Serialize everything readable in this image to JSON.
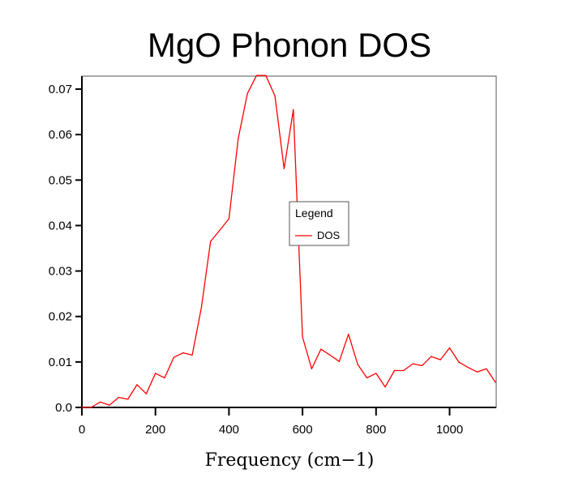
{
  "chart_data": {
    "type": "line",
    "title": "MgO Phonon DOS",
    "xlabel": "Frequency (cm−1)",
    "ylabel": "",
    "xlim": [
      0,
      1125
    ],
    "ylim": [
      0,
      0.073
    ],
    "xticks": [
      0,
      200,
      400,
      600,
      800,
      1000
    ],
    "xtick_labels": [
      "0",
      "200",
      "400",
      "600",
      "800",
      "1000"
    ],
    "yticks": [
      0.0,
      0.01,
      0.02,
      0.03,
      0.04,
      0.05,
      0.06,
      0.07
    ],
    "ytick_labels": [
      "0.0",
      "0.01",
      "0.02",
      "0.03",
      "0.04",
      "0.05",
      "0.06",
      "0.07"
    ],
    "grid": false,
    "legend": {
      "title": "Legend",
      "position": "center-right",
      "entries": [
        {
          "label": "DOS",
          "color": "#ff0000"
        }
      ]
    },
    "series": [
      {
        "name": "DOS",
        "color": "#ff0000",
        "x": [
          0,
          25,
          50,
          75,
          100,
          125,
          150,
          175,
          200,
          225,
          250,
          275,
          300,
          325,
          350,
          375,
          400,
          425,
          450,
          475,
          500,
          525,
          550,
          575,
          600,
          625,
          650,
          675,
          700,
          725,
          750,
          775,
          800,
          825,
          850,
          875,
          900,
          925,
          950,
          975,
          1000,
          1025,
          1050,
          1075,
          1100,
          1125
        ],
        "values": [
          0.0,
          0.0,
          0.0012,
          0.0005,
          0.0022,
          0.0018,
          0.005,
          0.003,
          0.0075,
          0.0065,
          0.011,
          0.012,
          0.0115,
          0.022,
          0.0365,
          0.039,
          0.0415,
          0.059,
          0.069,
          0.0735,
          0.073,
          0.0685,
          0.0525,
          0.0655,
          0.0155,
          0.0085,
          0.0128,
          0.0115,
          0.0101,
          0.0161,
          0.0095,
          0.0065,
          0.0075,
          0.0045,
          0.0081,
          0.0081,
          0.0096,
          0.0092,
          0.0112,
          0.0105,
          0.0131,
          0.01,
          0.0088,
          0.0078,
          0.0085,
          0.0055
        ]
      }
    ]
  }
}
